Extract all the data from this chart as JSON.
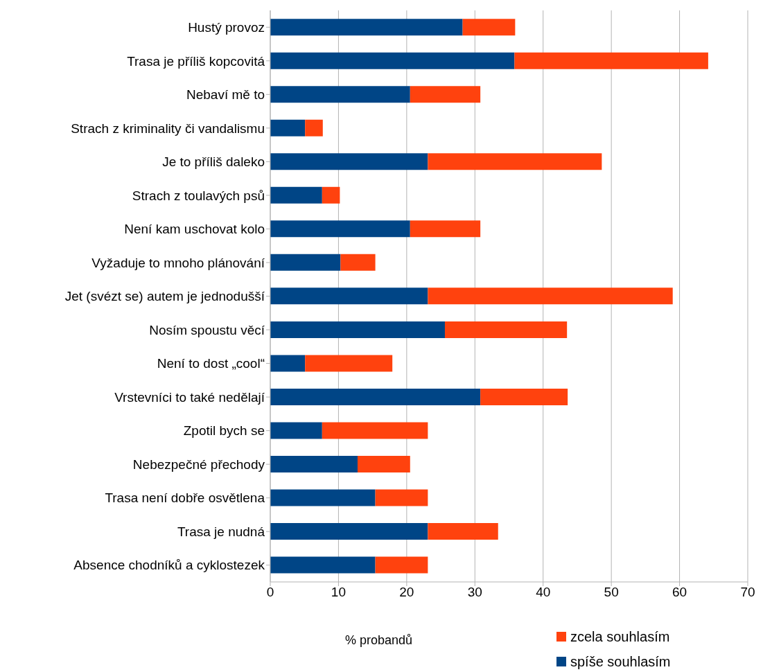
{
  "chart_data": {
    "type": "bar",
    "orientation": "horizontal",
    "stacked": true,
    "categories": [
      "Hustý provoz",
      "Trasa je příliš kopcovitá",
      "Nebaví mě to",
      "Strach z kriminality či vandalismu",
      "Je to příliš daleko",
      "Strach z toulavých psů",
      "Není kam uschovat kolo",
      "Vyžaduje to mnoho plánování",
      "Jet (svézt se) autem je jednodušší",
      "Nosím spoustu věcí",
      "Není to dost „cool“",
      "Vrstevníci  to také nedělají",
      "Zpotil bych se",
      "Nebezpečné přechody",
      "Trasa není dobře osvětlena",
      "Trasa je nudná",
      "Absence chodníků a cyklostezek"
    ],
    "series": [
      {
        "name": "spíše souhlasím",
        "color": "#004586",
        "values": [
          28.2,
          35.8,
          20.5,
          5.1,
          23.1,
          7.6,
          20.5,
          10.3,
          23.1,
          25.6,
          5.1,
          30.8,
          7.6,
          12.8,
          15.4,
          23.1,
          15.4
        ]
      },
      {
        "name": "zcela souhlasím",
        "color": "#ff420e",
        "values": [
          7.7,
          28.4,
          10.3,
          2.6,
          25.5,
          2.6,
          10.3,
          5.1,
          35.9,
          17.9,
          12.8,
          12.8,
          15.5,
          7.7,
          7.7,
          10.3,
          7.7
        ]
      }
    ],
    "xlim": [
      0,
      70
    ],
    "xticks": [
      0,
      10,
      20,
      30,
      40,
      50,
      60,
      70
    ],
    "xlabel": "% probandů",
    "grid": "x",
    "legend": "bottom right"
  }
}
